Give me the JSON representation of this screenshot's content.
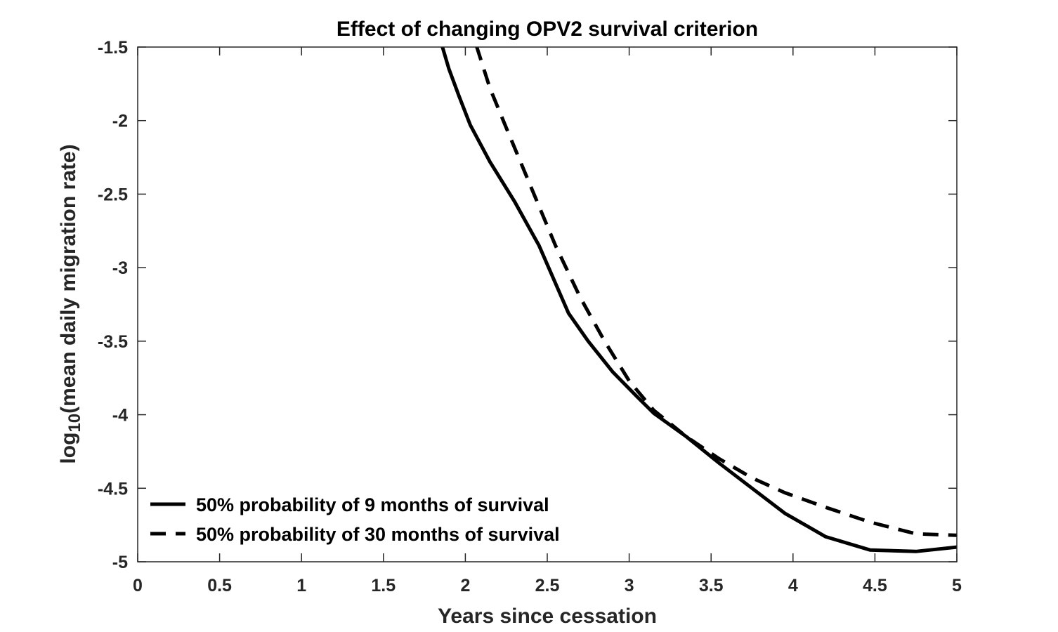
{
  "chart_data": {
    "type": "line",
    "title": "Effect of changing OPV2 survival criterion",
    "xlabel": "Years since cessation",
    "ylabel_prefix": "log",
    "ylabel_subscript": "10",
    "ylabel_rest": "(mean daily migration rate)",
    "xlim": [
      0,
      5
    ],
    "ylim": [
      -5,
      -1.5
    ],
    "xticks": [
      0,
      0.5,
      1,
      1.5,
      2,
      2.5,
      3,
      3.5,
      4,
      4.5,
      5
    ],
    "xtick_labels": [
      "0",
      "0.5",
      "1",
      "1.5",
      "2",
      "2.5",
      "3",
      "3.5",
      "4",
      "4.5",
      "5"
    ],
    "yticks": [
      -1.5,
      -2,
      -2.5,
      -3,
      -3.5,
      -4,
      -4.5,
      -5
    ],
    "ytick_labels": [
      "-1.5",
      "-2",
      "-2.5",
      "-3",
      "-3.5",
      "-4",
      "-4.5",
      "-5"
    ],
    "grid": false,
    "legend_position": "bottom-left",
    "series": [
      {
        "name": "50% probability of 9 months of survival",
        "style": "solid",
        "color": "#000000",
        "x": [
          1.7,
          1.86,
          1.9,
          1.96,
          2.03,
          2.15,
          2.3,
          2.45,
          2.63,
          2.75,
          2.9,
          3.05,
          3.15,
          3.35,
          3.55,
          3.75,
          3.95,
          4.2,
          4.47,
          4.75,
          5.0
        ],
        "y": [
          -1.0,
          -1.5,
          -1.65,
          -1.83,
          -2.03,
          -2.28,
          -2.55,
          -2.85,
          -3.31,
          -3.5,
          -3.71,
          -3.88,
          -3.99,
          -4.15,
          -4.33,
          -4.5,
          -4.67,
          -4.83,
          -4.92,
          -4.93,
          -4.9
        ]
      },
      {
        "name": "50% probability of 30 months of survival",
        "style": "dashed",
        "color": "#000000",
        "x": [
          1.92,
          2.07,
          2.15,
          2.25,
          2.4,
          2.55,
          2.7,
          2.85,
          3.0,
          3.15,
          3.35,
          3.55,
          3.75,
          3.95,
          4.2,
          4.47,
          4.75,
          5.0
        ],
        "y": [
          -1.0,
          -1.5,
          -1.78,
          -2.05,
          -2.45,
          -2.85,
          -3.2,
          -3.5,
          -3.77,
          -3.97,
          -4.15,
          -4.3,
          -4.43,
          -4.53,
          -4.63,
          -4.73,
          -4.81,
          -4.82
        ]
      }
    ]
  }
}
